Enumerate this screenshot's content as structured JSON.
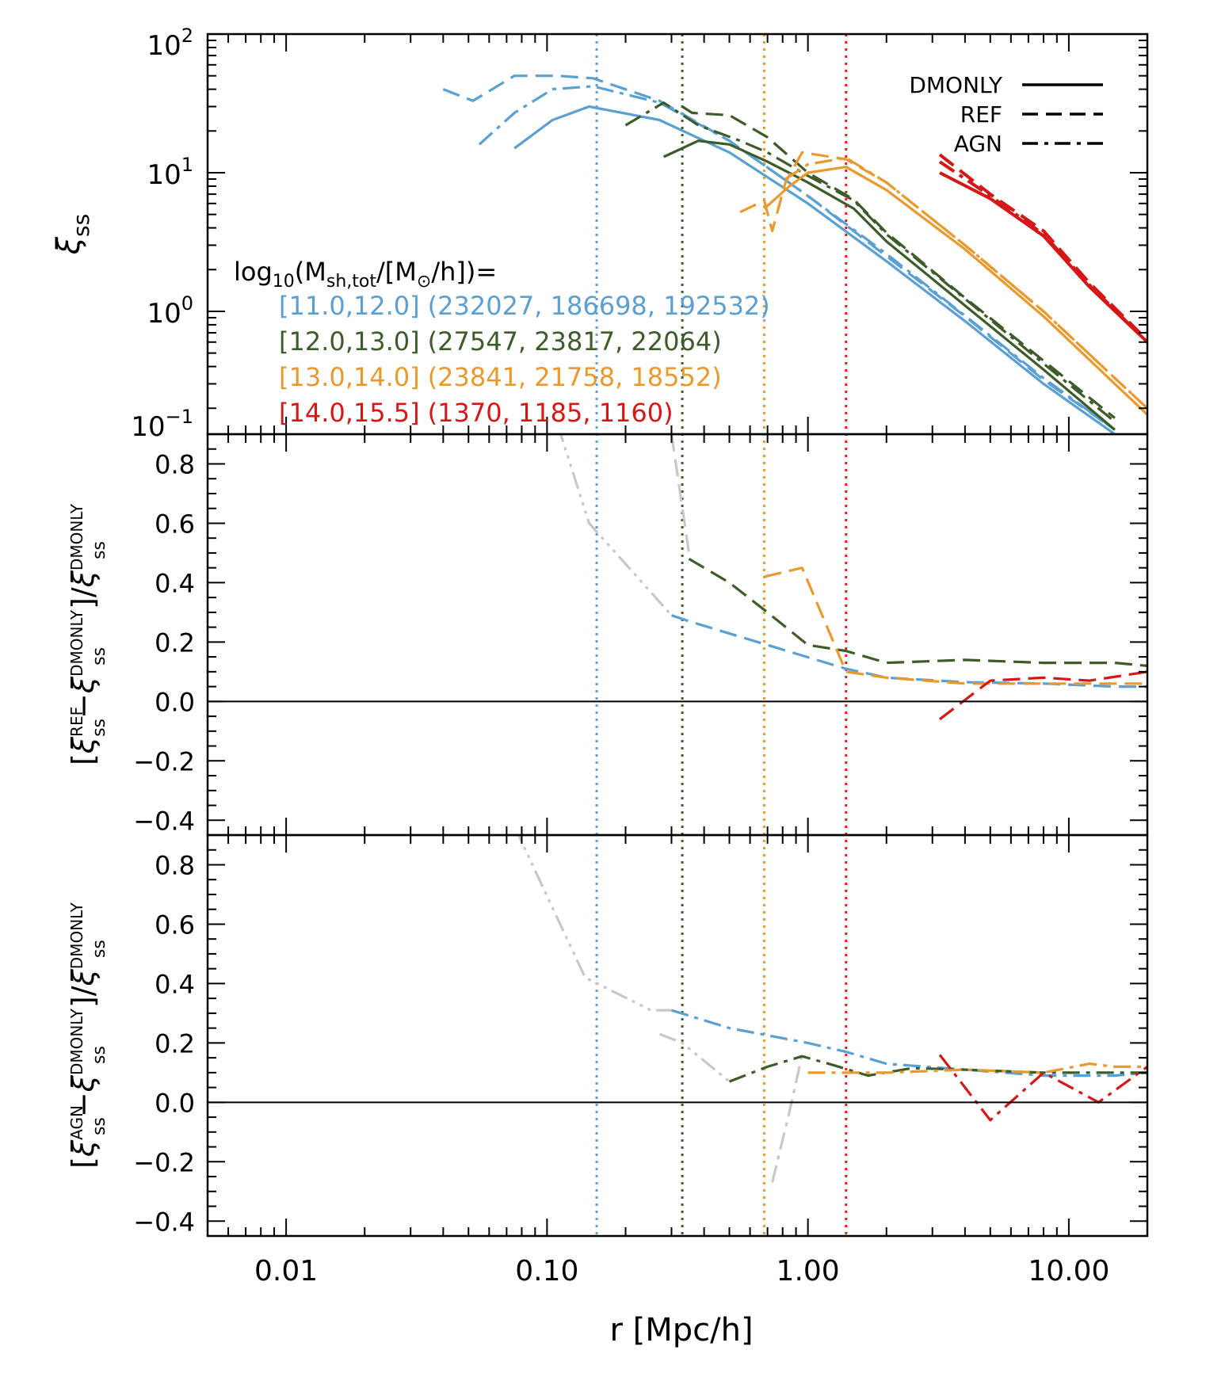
{
  "chart_data": {
    "type": "line",
    "xscale": "log",
    "xlim": [
      0.005,
      20
    ],
    "xlabel": "r [Mpc/h]",
    "xticklabels": [
      "0.01",
      "0.10",
      "1.00",
      "10.00"
    ],
    "xticks": [
      0.01,
      0.1,
      1,
      10
    ],
    "legend_styles": [
      {
        "label": "DMONLY",
        "style": "solid"
      },
      {
        "label": "REF",
        "style": "dashed"
      },
      {
        "label": "AGN",
        "style": "dashdot"
      }
    ],
    "mass_bins": {
      "header_prefix": "log",
      "header_sub": "10",
      "header_open": "(M",
      "header_msub": "sh,tot",
      "header_close": "/[M",
      "header_sun": "⊙",
      "header_end": "/h])=",
      "bins": [
        {
          "range": "[11.0,12.0]",
          "counts": "(232027, 186698, 192532)",
          "color": "#5aa0d2"
        },
        {
          "range": "[12.0,13.0]",
          "counts": "(27547, 23817, 22064)",
          "color": "#3d5c2a"
        },
        {
          "range": "[13.0,14.0]",
          "counts": "(23841, 21758, 18552)",
          "color": "#e89a2e"
        },
        {
          "range": "[14.0,15.5]",
          "counts": "(1370, 1185, 1160)",
          "color": "#d41818"
        }
      ]
    },
    "vlines": [
      {
        "x": 0.155,
        "color": "#5aa0d2"
      },
      {
        "x": 0.33,
        "color": "#3d5c2a"
      },
      {
        "x": 0.68,
        "color": "#e89a2e"
      },
      {
        "x": 1.4,
        "color": "#ee1c1c"
      }
    ],
    "panels": [
      {
        "id": "top",
        "yscale": "log",
        "ylim": [
          0.13,
          100
        ],
        "ylabel": "ξ",
        "ylabel_sub": "ss",
        "yticks": [
          0.1,
          1,
          10,
          100
        ],
        "yticklabels": [
          {
            "base": "10",
            "exp": "−1"
          },
          {
            "base": "10",
            "exp": "0"
          },
          {
            "base": "10",
            "exp": "1"
          },
          {
            "base": "10",
            "exp": "2"
          }
        ],
        "series": [
          {
            "name": "11-12 DMONLY",
            "color": "#5aa0d2",
            "style": "solid",
            "x": [
              0.075,
              0.105,
              0.145,
              0.27,
              0.5,
              1.0,
              2.0,
              4.0,
              8.0,
              15.0
            ],
            "y": [
              15,
              24,
              30,
              24,
              14,
              6.0,
              2.3,
              0.85,
              0.3,
              0.13
            ]
          },
          {
            "name": "11-12 REF",
            "color": "#5aa0d2",
            "style": "dashed",
            "x": [
              0.04,
              0.052,
              0.075,
              0.11,
              0.15,
              0.27,
              0.5,
              1.0,
              2.0,
              4.0,
              8.0,
              15.0
            ],
            "y": [
              40,
              33,
              50,
              50,
              48,
              33,
              17,
              6.8,
              2.5,
              0.92,
              0.32,
              0.14
            ]
          },
          {
            "name": "11-12 AGN",
            "color": "#5aa0d2",
            "style": "dashdot",
            "x": [
              0.055,
              0.075,
              0.105,
              0.15,
              0.27,
              0.5,
              1.0,
              2.0,
              4.0,
              8.0,
              15.0
            ],
            "y": [
              16,
              27,
              40,
              42,
              32,
              17,
              6.8,
              2.6,
              0.93,
              0.33,
              0.14
            ]
          },
          {
            "name": "12-13 DMONLY",
            "color": "#3d5c2a",
            "style": "solid",
            "x": [
              0.28,
              0.38,
              0.5,
              0.7,
              1.0,
              1.5,
              2.0,
              4.0,
              8.0,
              15.0
            ],
            "y": [
              13,
              17,
              16,
              12,
              8.5,
              5.5,
              3.2,
              1.1,
              0.38,
              0.14
            ]
          },
          {
            "name": "12-13 REF",
            "color": "#3d5c2a",
            "style": "dashed",
            "x": [
              0.33,
              0.36,
              0.5,
              0.7,
              1.0,
              1.5,
              2.0,
              4.0,
              8.0,
              15.0
            ],
            "y": [
              30,
              27,
              26,
              18,
              10,
              6.4,
              3.7,
              1.25,
              0.44,
              0.17
            ]
          },
          {
            "name": "12-13 AGN",
            "color": "#3d5c2a",
            "style": "dashdot",
            "x": [
              0.2,
              0.28,
              0.38,
              0.55,
              0.7,
              1.0,
              1.5,
              2.0,
              4.0,
              8.0,
              15.0
            ],
            "y": [
              22,
              32,
              22,
              17,
              14,
              9.5,
              6.3,
              3.6,
              1.23,
              0.42,
              0.16
            ]
          },
          {
            "name": "13-14 DMONLY",
            "color": "#e89a2e",
            "style": "solid",
            "x": [
              0.68,
              0.85,
              1.0,
              1.4,
              2.0,
              4.0,
              8.0,
              15.0,
              20.0
            ],
            "y": [
              5.5,
              8.0,
              10,
              11,
              7.5,
              2.8,
              0.92,
              0.3,
              0.18
            ]
          },
          {
            "name": "13-14 REF",
            "color": "#e89a2e",
            "style": "dashed",
            "x": [
              0.55,
              0.68,
              0.73,
              0.82,
              0.95,
              1.4,
              2.0,
              4.0,
              8.0,
              15.0,
              20.0
            ],
            "y": [
              5.2,
              6.3,
              3.8,
              8.5,
              14,
              12.5,
              8.5,
              3.0,
              1.0,
              0.33,
              0.2
            ]
          },
          {
            "name": "13-14 AGN",
            "color": "#e89a2e",
            "style": "dashdot",
            "x": [
              0.82,
              1.0,
              1.4,
              2.0,
              4.0,
              8.0,
              15.0,
              20.0
            ],
            "y": [
              9,
              11.5,
              12.8,
              8.5,
              3.0,
              1.0,
              0.33,
              0.2
            ]
          },
          {
            "name": "14-15.5 DMONLY",
            "color": "#d41818",
            "style": "solid",
            "x": [
              3.2,
              5.0,
              8.0,
              12.0,
              20.0
            ],
            "y": [
              10,
              6.5,
              3.5,
              1.5,
              0.6
            ]
          },
          {
            "name": "14-15.5 REF",
            "color": "#d41818",
            "style": "dashed",
            "x": [
              3.2,
              5.0,
              8.0,
              12.0,
              20.0
            ],
            "y": [
              13.5,
              7.0,
              3.8,
              1.6,
              0.62
            ]
          },
          {
            "name": "14-15.5 AGN",
            "color": "#d41818",
            "style": "dashdot",
            "x": [
              3.2,
              5.0,
              8.0,
              12.0,
              20.0
            ],
            "y": [
              12,
              6.8,
              3.6,
              1.55,
              0.6
            ]
          }
        ]
      },
      {
        "id": "middle",
        "yscale": "linear",
        "ylim": [
          -0.45,
          0.9
        ],
        "ylabel": "[ξ_ss^REF − ξ_ss^DMONLY]/ξ_ss^DMONLY",
        "ylabel_sym": "ξ",
        "ylabel_sup_num": "REF",
        "ylabel_sup_den": "DMONLY",
        "ylabel_sub": "ss",
        "yticks": [
          -0.4,
          -0.2,
          0.0,
          0.2,
          0.4,
          0.6,
          0.8
        ],
        "yticklabels": [
          "−0.4",
          "−0.2",
          "0.0",
          "0.2",
          "0.4",
          "0.6",
          "0.8"
        ],
        "series": [
          {
            "name": "grey low-r",
            "color": "#c8c8c8",
            "style": "dashdotdotdot",
            "x": [
              0.11,
              0.145,
              0.3
            ],
            "y": [
              0.93,
              0.6,
              0.29
            ]
          },
          {
            "name": "grey green extension",
            "color": "#c8c8c8",
            "style": "dashed",
            "x": [
              0.3,
              0.35
            ],
            "y": [
              0.9,
              0.5
            ]
          },
          {
            "name": "11-12",
            "color": "#5aa0d2",
            "style": "dashed",
            "x": [
              0.3,
              0.35,
              0.7,
              1.4,
              2.0,
              4.0,
              8.0,
              15.0,
              20.0
            ],
            "y": [
              0.29,
              0.27,
              0.19,
              0.11,
              0.08,
              0.065,
              0.06,
              0.05,
              0.05
            ]
          },
          {
            "name": "12-13",
            "color": "#3d5c2a",
            "style": "dashed",
            "x": [
              0.35,
              0.5,
              0.7,
              1.0,
              1.4,
              2.0,
              4.0,
              8.0,
              15.0,
              20.0
            ],
            "y": [
              0.48,
              0.4,
              0.3,
              0.19,
              0.17,
              0.13,
              0.14,
              0.13,
              0.13,
              0.12
            ]
          },
          {
            "name": "13-14",
            "color": "#e89a2e",
            "style": "dashed",
            "x": [
              0.68,
              0.95,
              1.4,
              2.0,
              4.0,
              8.0,
              15.0,
              20.0
            ],
            "y": [
              0.42,
              0.45,
              0.1,
              0.08,
              0.06,
              0.06,
              0.06,
              0.06
            ]
          },
          {
            "name": "14-15.5",
            "color": "#d41818",
            "style": "dashed",
            "x": [
              3.2,
              5.0,
              8.0,
              12.0,
              20.0
            ],
            "y": [
              -0.06,
              0.07,
              0.08,
              0.07,
              0.1
            ]
          }
        ]
      },
      {
        "id": "bottom",
        "yscale": "linear",
        "ylim": [
          -0.45,
          0.9
        ],
        "ylabel": "[ξ_ss^AGN − ξ_ss^DMONLY]/ξ_ss^DMONLY",
        "ylabel_sym": "ξ",
        "ylabel_sup_num": "AGN",
        "ylabel_sup_den": "DMONLY",
        "ylabel_sub": "ss",
        "yticks": [
          -0.4,
          -0.2,
          0.0,
          0.2,
          0.4,
          0.6,
          0.8
        ],
        "yticklabels": [
          "−0.4",
          "−0.2",
          "0.0",
          "0.2",
          "0.4",
          "0.6",
          "0.8"
        ],
        "series": [
          {
            "name": "grey low-r",
            "color": "#c8c8c8",
            "style": "dashdotdotdot",
            "x": [
              0.075,
              0.14,
              0.25,
              0.3
            ],
            "y": [
              0.93,
              0.42,
              0.31,
              0.31
            ]
          },
          {
            "name": "grey mid",
            "color": "#c8c8c8",
            "style": "dashdotdotdot",
            "x": [
              0.27,
              0.33,
              0.5
            ],
            "y": [
              0.23,
              0.2,
              0.07
            ]
          },
          {
            "name": "grey dip",
            "color": "#c8c8c8",
            "style": "dashdot",
            "x": [
              0.73,
              0.85,
              0.95
            ],
            "y": [
              -0.27,
              -0.03,
              0.16
            ]
          },
          {
            "name": "11-12",
            "color": "#5aa0d2",
            "style": "dashdot",
            "x": [
              0.3,
              0.5,
              1.0,
              1.4,
              2.0,
              4.0,
              8.0,
              15.0,
              20.0
            ],
            "y": [
              0.31,
              0.25,
              0.2,
              0.17,
              0.13,
              0.11,
              0.09,
              0.09,
              0.1
            ]
          },
          {
            "name": "12-13",
            "color": "#3d5c2a",
            "style": "dashdot",
            "x": [
              0.5,
              0.7,
              0.95,
              1.2,
              1.7,
              2.5,
              4.0,
              8.0,
              15.0,
              20.0
            ],
            "y": [
              0.07,
              0.12,
              0.155,
              0.13,
              0.09,
              0.115,
              0.11,
              0.1,
              0.1,
              0.1
            ]
          },
          {
            "name": "13-14",
            "color": "#e89a2e",
            "style": "dashdot",
            "x": [
              1.0,
              1.4,
              2.0,
              4.0,
              8.0,
              12.0,
              15.0,
              20.0
            ],
            "y": [
              0.1,
              0.1,
              0.1,
              0.11,
              0.1,
              0.13,
              0.12,
              0.12
            ]
          },
          {
            "name": "14-15.5",
            "color": "#d41818",
            "style": "dashdot",
            "x": [
              3.2,
              5.0,
              8.0,
              13.0,
              20.0
            ],
            "y": [
              0.16,
              -0.06,
              0.1,
              0.0,
              0.12
            ]
          }
        ]
      }
    ]
  }
}
